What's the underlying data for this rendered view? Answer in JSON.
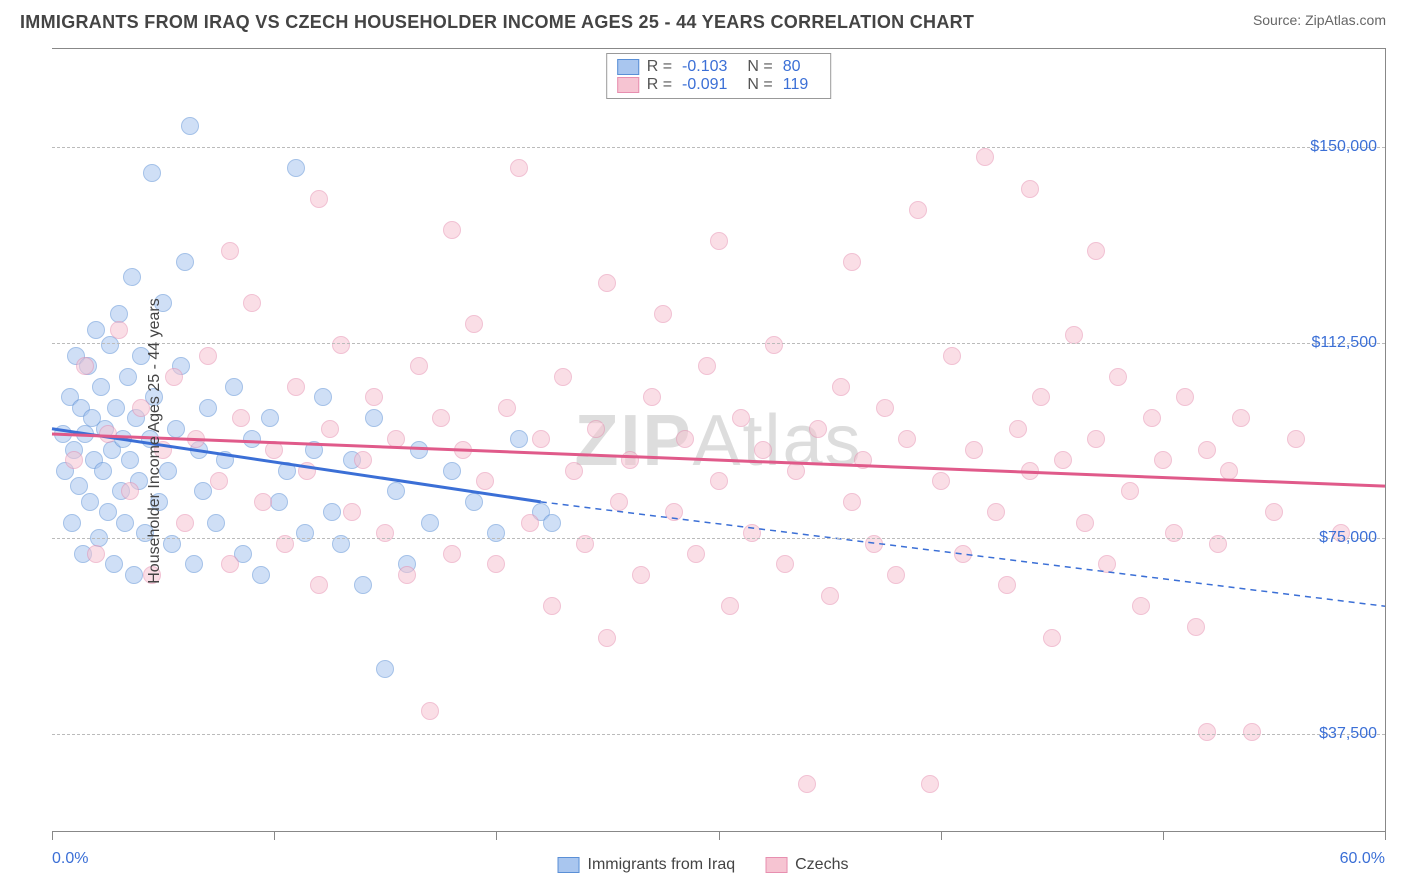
{
  "header": {
    "title": "IMMIGRANTS FROM IRAQ VS CZECH HOUSEHOLDER INCOME AGES 25 - 44 YEARS CORRELATION CHART",
    "source_label": "Source:",
    "source_name": "ZipAtlas.com"
  },
  "chart": {
    "type": "scatter",
    "y_axis_title": "Householder Income Ages 25 - 44 years",
    "xlim": [
      0,
      60
    ],
    "ylim": [
      18750,
      168750
    ],
    "x_min_label": "0.0%",
    "x_max_label": "60.0%",
    "x_tick_positions": [
      0,
      10,
      20,
      30,
      40,
      50,
      60
    ],
    "y_ticks": [
      {
        "value": 37500,
        "label": "$37,500"
      },
      {
        "value": 75000,
        "label": "$75,000"
      },
      {
        "value": 112500,
        "label": "$112,500"
      },
      {
        "value": 150000,
        "label": "$150,000"
      }
    ],
    "grid_color": "#bbbbbb",
    "background_color": "#ffffff",
    "point_radius": 9,
    "point_opacity": 0.55,
    "watermark": "ZIPAtlas",
    "series": [
      {
        "key": "iraq",
        "label": "Immigrants from Iraq",
        "fill": "#a9c6ef",
        "stroke": "#5a8fd6",
        "line_color": "#3b6fd6",
        "r_value": "-0.103",
        "n_value": "80",
        "trend": {
          "x1": 0,
          "y1": 96000,
          "x2": 22,
          "y2": 82000,
          "dash_to_x": 60,
          "dash_to_y": 62000
        },
        "points": [
          [
            0.5,
            95000
          ],
          [
            0.6,
            88000
          ],
          [
            0.8,
            102000
          ],
          [
            0.9,
            78000
          ],
          [
            1.0,
            92000
          ],
          [
            1.1,
            110000
          ],
          [
            1.2,
            85000
          ],
          [
            1.3,
            100000
          ],
          [
            1.4,
            72000
          ],
          [
            1.5,
            95000
          ],
          [
            1.6,
            108000
          ],
          [
            1.7,
            82000
          ],
          [
            1.8,
            98000
          ],
          [
            1.9,
            90000
          ],
          [
            2.0,
            115000
          ],
          [
            2.1,
            75000
          ],
          [
            2.2,
            104000
          ],
          [
            2.3,
            88000
          ],
          [
            2.4,
            96000
          ],
          [
            2.5,
            80000
          ],
          [
            2.6,
            112000
          ],
          [
            2.7,
            92000
          ],
          [
            2.8,
            70000
          ],
          [
            2.9,
            100000
          ],
          [
            3.0,
            118000
          ],
          [
            3.1,
            84000
          ],
          [
            3.2,
            94000
          ],
          [
            3.3,
            78000
          ],
          [
            3.4,
            106000
          ],
          [
            3.5,
            90000
          ],
          [
            3.6,
            125000
          ],
          [
            3.7,
            68000
          ],
          [
            3.8,
            98000
          ],
          [
            3.9,
            86000
          ],
          [
            4.0,
            110000
          ],
          [
            4.2,
            76000
          ],
          [
            4.4,
            94000
          ],
          [
            4.6,
            102000
          ],
          [
            4.8,
            82000
          ],
          [
            5.0,
            120000
          ],
          [
            5.2,
            88000
          ],
          [
            5.4,
            74000
          ],
          [
            5.6,
            96000
          ],
          [
            5.8,
            108000
          ],
          [
            6.0,
            128000
          ],
          [
            6.2,
            154000
          ],
          [
            6.4,
            70000
          ],
          [
            6.6,
            92000
          ],
          [
            6.8,
            84000
          ],
          [
            7.0,
            100000
          ],
          [
            4.5,
            145000
          ],
          [
            7.4,
            78000
          ],
          [
            7.8,
            90000
          ],
          [
            8.2,
            104000
          ],
          [
            8.6,
            72000
          ],
          [
            9.0,
            94000
          ],
          [
            9.4,
            68000
          ],
          [
            9.8,
            98000
          ],
          [
            10.2,
            82000
          ],
          [
            10.6,
            88000
          ],
          [
            11.0,
            146000
          ],
          [
            11.4,
            76000
          ],
          [
            11.8,
            92000
          ],
          [
            12.2,
            102000
          ],
          [
            12.6,
            80000
          ],
          [
            13.0,
            74000
          ],
          [
            13.5,
            90000
          ],
          [
            14.0,
            66000
          ],
          [
            14.5,
            98000
          ],
          [
            15.0,
            50000
          ],
          [
            15.5,
            84000
          ],
          [
            16.0,
            70000
          ],
          [
            16.5,
            92000
          ],
          [
            17.0,
            78000
          ],
          [
            18.0,
            88000
          ],
          [
            19.0,
            82000
          ],
          [
            20.0,
            76000
          ],
          [
            21.0,
            94000
          ],
          [
            22.0,
            80000
          ],
          [
            22.5,
            78000
          ]
        ]
      },
      {
        "key": "czech",
        "label": "Czechs",
        "fill": "#f6c4d2",
        "stroke": "#e78fb0",
        "line_color": "#e05a8a",
        "r_value": "-0.091",
        "n_value": "119",
        "trend": {
          "x1": 0,
          "y1": 95000,
          "x2": 60,
          "y2": 85000,
          "dash_to_x": 60,
          "dash_to_y": 85000
        },
        "points": [
          [
            1.0,
            90000
          ],
          [
            1.5,
            108000
          ],
          [
            2.0,
            72000
          ],
          [
            2.5,
            95000
          ],
          [
            3.0,
            115000
          ],
          [
            3.5,
            84000
          ],
          [
            4.0,
            100000
          ],
          [
            4.5,
            68000
          ],
          [
            5.0,
            92000
          ],
          [
            5.5,
            106000
          ],
          [
            6.0,
            78000
          ],
          [
            6.5,
            94000
          ],
          [
            7.0,
            110000
          ],
          [
            7.5,
            86000
          ],
          [
            8.0,
            70000
          ],
          [
            8.5,
            98000
          ],
          [
            9.0,
            120000
          ],
          [
            9.5,
            82000
          ],
          [
            10.0,
            92000
          ],
          [
            10.5,
            74000
          ],
          [
            11.0,
            104000
          ],
          [
            11.5,
            88000
          ],
          [
            12.0,
            66000
          ],
          [
            12.5,
            96000
          ],
          [
            13.0,
            112000
          ],
          [
            13.5,
            80000
          ],
          [
            14.0,
            90000
          ],
          [
            14.5,
            102000
          ],
          [
            15.0,
            76000
          ],
          [
            15.5,
            94000
          ],
          [
            16.0,
            68000
          ],
          [
            16.5,
            108000
          ],
          [
            17.0,
            42000
          ],
          [
            17.5,
            98000
          ],
          [
            18.0,
            72000
          ],
          [
            18.5,
            92000
          ],
          [
            19.0,
            116000
          ],
          [
            19.5,
            86000
          ],
          [
            20.0,
            70000
          ],
          [
            20.5,
            100000
          ],
          [
            21.0,
            146000
          ],
          [
            21.5,
            78000
          ],
          [
            22.0,
            94000
          ],
          [
            22.5,
            62000
          ],
          [
            23.0,
            106000
          ],
          [
            23.5,
            88000
          ],
          [
            24.0,
            74000
          ],
          [
            24.5,
            96000
          ],
          [
            25.0,
            56000
          ],
          [
            25.5,
            82000
          ],
          [
            26.0,
            90000
          ],
          [
            26.5,
            68000
          ],
          [
            27.0,
            102000
          ],
          [
            27.5,
            118000
          ],
          [
            28.0,
            80000
          ],
          [
            28.5,
            94000
          ],
          [
            29.0,
            72000
          ],
          [
            29.5,
            108000
          ],
          [
            30.0,
            86000
          ],
          [
            30.5,
            62000
          ],
          [
            31.0,
            98000
          ],
          [
            31.5,
            76000
          ],
          [
            32.0,
            92000
          ],
          [
            32.5,
            112000
          ],
          [
            33.0,
            70000
          ],
          [
            33.5,
            88000
          ],
          [
            34.0,
            28000
          ],
          [
            34.5,
            96000
          ],
          [
            35.0,
            64000
          ],
          [
            35.5,
            104000
          ],
          [
            36.0,
            82000
          ],
          [
            36.5,
            90000
          ],
          [
            37.0,
            74000
          ],
          [
            37.5,
            100000
          ],
          [
            38.0,
            68000
          ],
          [
            38.5,
            94000
          ],
          [
            39.0,
            138000
          ],
          [
            39.5,
            28000
          ],
          [
            40.0,
            86000
          ],
          [
            40.5,
            110000
          ],
          [
            41.0,
            72000
          ],
          [
            41.5,
            92000
          ],
          [
            42.0,
            148000
          ],
          [
            42.5,
            80000
          ],
          [
            43.0,
            66000
          ],
          [
            43.5,
            96000
          ],
          [
            44.0,
            88000
          ],
          [
            44.5,
            102000
          ],
          [
            45.0,
            56000
          ],
          [
            45.5,
            90000
          ],
          [
            46.0,
            114000
          ],
          [
            46.5,
            78000
          ],
          [
            47.0,
            94000
          ],
          [
            47.5,
            70000
          ],
          [
            48.0,
            106000
          ],
          [
            48.5,
            84000
          ],
          [
            49.0,
            62000
          ],
          [
            49.5,
            98000
          ],
          [
            50.0,
            90000
          ],
          [
            50.5,
            76000
          ],
          [
            51.0,
            102000
          ],
          [
            51.5,
            58000
          ],
          [
            52.0,
            92000
          ],
          [
            52.5,
            74000
          ],
          [
            53.0,
            88000
          ],
          [
            53.5,
            98000
          ],
          [
            54.0,
            38000
          ],
          [
            55.0,
            80000
          ],
          [
            56.0,
            94000
          ],
          [
            58.0,
            76000
          ],
          [
            52.0,
            38000
          ],
          [
            47.0,
            130000
          ],
          [
            44.0,
            142000
          ],
          [
            36.0,
            128000
          ],
          [
            30.0,
            132000
          ],
          [
            25.0,
            124000
          ],
          [
            18.0,
            134000
          ],
          [
            12.0,
            140000
          ],
          [
            8.0,
            130000
          ]
        ]
      }
    ]
  },
  "legend_bottom": {
    "items": [
      {
        "key": "iraq",
        "label": "Immigrants from Iraq"
      },
      {
        "key": "czech",
        "label": "Czechs"
      }
    ]
  }
}
